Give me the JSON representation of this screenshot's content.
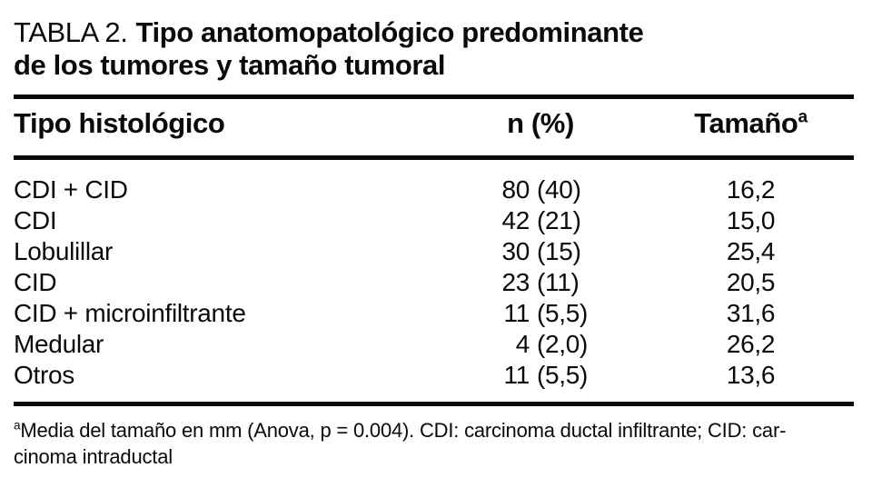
{
  "title": {
    "prefix": "TABLA 2.",
    "line1_bold": "Tipo anatomopatológico predominante",
    "line2_bold": "de los tumores y tamaño tumoral"
  },
  "table": {
    "columns": {
      "histology": "Tipo histológico",
      "n_pct": "n (%)",
      "size": "Tamaño",
      "size_superscript": "a"
    },
    "rows": [
      {
        "label": "CDI + CID",
        "n": "80",
        "pct": "(40)",
        "size": "16,2"
      },
      {
        "label": "CDI",
        "n": "42",
        "pct": "(21)",
        "size": "15,0"
      },
      {
        "label": "Lobulillar",
        "n": "30",
        "pct": "(15)",
        "size": "25,4"
      },
      {
        "label": "CID",
        "n": "23",
        "pct": "(11)",
        "size": "20,5"
      },
      {
        "label": "CID + microinfiltrante",
        "n": "11",
        "pct": "(5,5)",
        "size": "31,6"
      },
      {
        "label": "Medular",
        "n": "4",
        "pct": "(2,0)",
        "size": "26,2"
      },
      {
        "label": "Otros",
        "n": "11",
        "pct": "(5,5)",
        "size": "13,6"
      }
    ]
  },
  "footnote": {
    "marker": "a",
    "line1": "Media del tamaño en mm (Anova, p = 0.004). CDI: carcinoma ductal infiltrante; CID: car-",
    "line2": "cinoma intraductal"
  }
}
